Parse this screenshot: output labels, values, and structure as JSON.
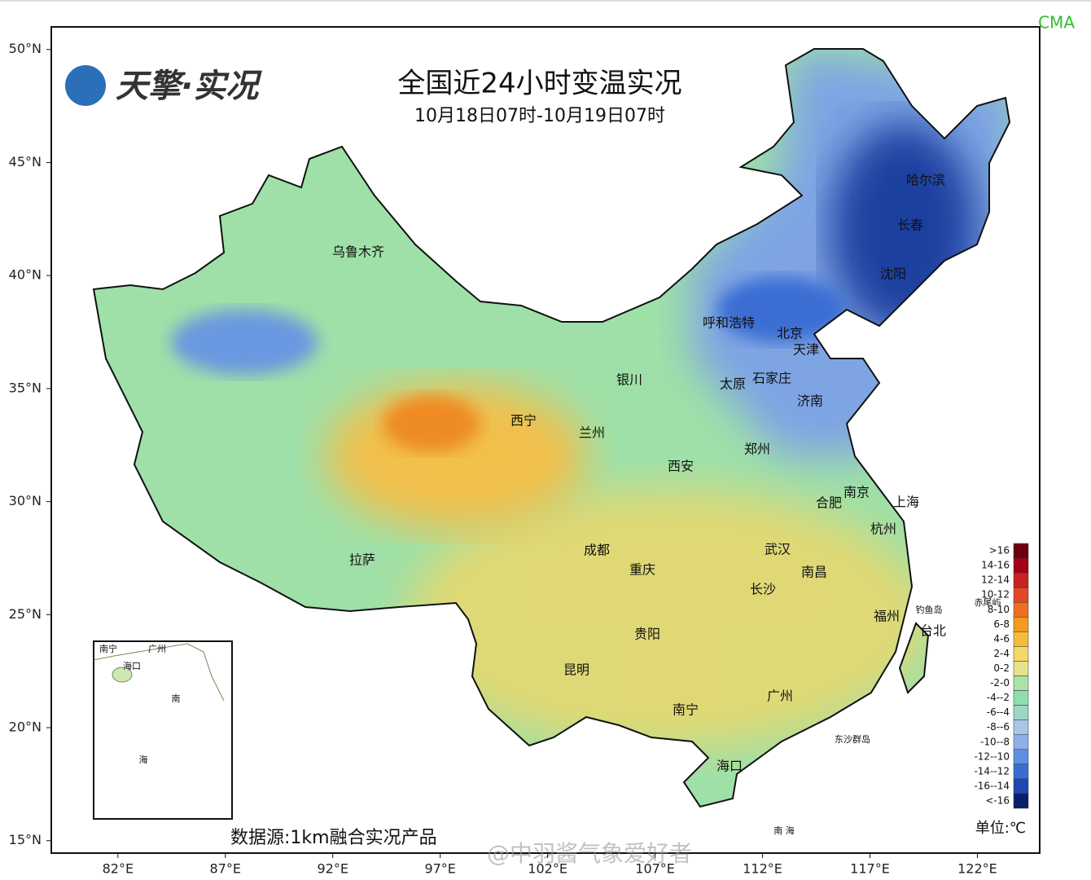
{
  "header": {
    "logo": "天擎·实况",
    "title": "全国近24小时变温实况",
    "subtitle": "10月18日07时-10月19日07时",
    "agency": "CMA"
  },
  "map": {
    "xlim": [
      78.9,
      124.9
    ],
    "ylim": [
      14.45,
      51
    ],
    "xticks": [
      {
        "value": 82,
        "label": "82°E"
      },
      {
        "value": 87,
        "label": "87°E"
      },
      {
        "value": 92,
        "label": "92°E"
      },
      {
        "value": 97,
        "label": "97°E"
      },
      {
        "value": 102,
        "label": "102°E"
      },
      {
        "value": 107,
        "label": "107°E"
      },
      {
        "value": 112,
        "label": "112°E"
      },
      {
        "value": 117,
        "label": "117°E"
      },
      {
        "value": 122,
        "label": "122°E"
      }
    ],
    "yticks": [
      {
        "value": 50,
        "label": "50°N"
      },
      {
        "value": 45,
        "label": "45°N"
      },
      {
        "value": 40,
        "label": "40°N"
      },
      {
        "value": 35,
        "label": "35°N"
      },
      {
        "value": 30,
        "label": "30°N"
      },
      {
        "value": 25,
        "label": "25°N"
      },
      {
        "value": 20,
        "label": "20°N"
      },
      {
        "value": 15,
        "label": "15°N"
      }
    ],
    "cities": [
      "乌鲁木齐",
      "呼和浩特",
      "北京",
      "天津",
      "哈尔滨",
      "长春",
      "沈阳",
      "银川",
      "太原",
      "石家庄",
      "济南",
      "西宁",
      "兰州",
      "郑州",
      "西安",
      "南京",
      "合肥",
      "上海",
      "杭州",
      "成都",
      "武汉",
      "拉萨",
      "重庆",
      "南昌",
      "长沙",
      "福州",
      "贵阳",
      "台北",
      "昆明",
      "广州",
      "南宁",
      "海口"
    ],
    "other_labels": [
      "钓鱼岛",
      "赤尾屿",
      "东沙群岛",
      "南 海"
    ],
    "inset_labels": [
      "南宁",
      "广州",
      "海口",
      "南",
      "海"
    ]
  },
  "legend": {
    "unit": "单位:℃",
    "classes": [
      {
        "label": ">16",
        "color": "#6b0010"
      },
      {
        "label": "14-16",
        "color": "#a30019"
      },
      {
        "label": "12-14",
        "color": "#c8231f"
      },
      {
        "label": "10-12",
        "color": "#e04a24"
      },
      {
        "label": "8-10",
        "color": "#ee6e22"
      },
      {
        "label": "6-8",
        "color": "#f39a1f"
      },
      {
        "label": "4-6",
        "color": "#f5bb3c"
      },
      {
        "label": "2-4",
        "color": "#f6d768"
      },
      {
        "label": "0-2",
        "color": "#e6e38a"
      },
      {
        "label": "-2-0",
        "color": "#a9e3a5"
      },
      {
        "label": "-4--2",
        "color": "#8edfb0"
      },
      {
        "label": "-6--4",
        "color": "#9dd6c9"
      },
      {
        "label": "-8--6",
        "color": "#a8c6e6"
      },
      {
        "label": "-10--8",
        "color": "#8fb0e6"
      },
      {
        "label": "-12--10",
        "color": "#5e8fe0"
      },
      {
        "label": "-14--12",
        "color": "#3a6dd3"
      },
      {
        "label": "-16--14",
        "color": "#2048b0"
      },
      {
        "label": "<-16",
        "color": "#0a1f6b"
      }
    ]
  },
  "footer": {
    "source": "数据源:1km融合实况产品",
    "watermark": "@中羽酱气象爱好者"
  }
}
